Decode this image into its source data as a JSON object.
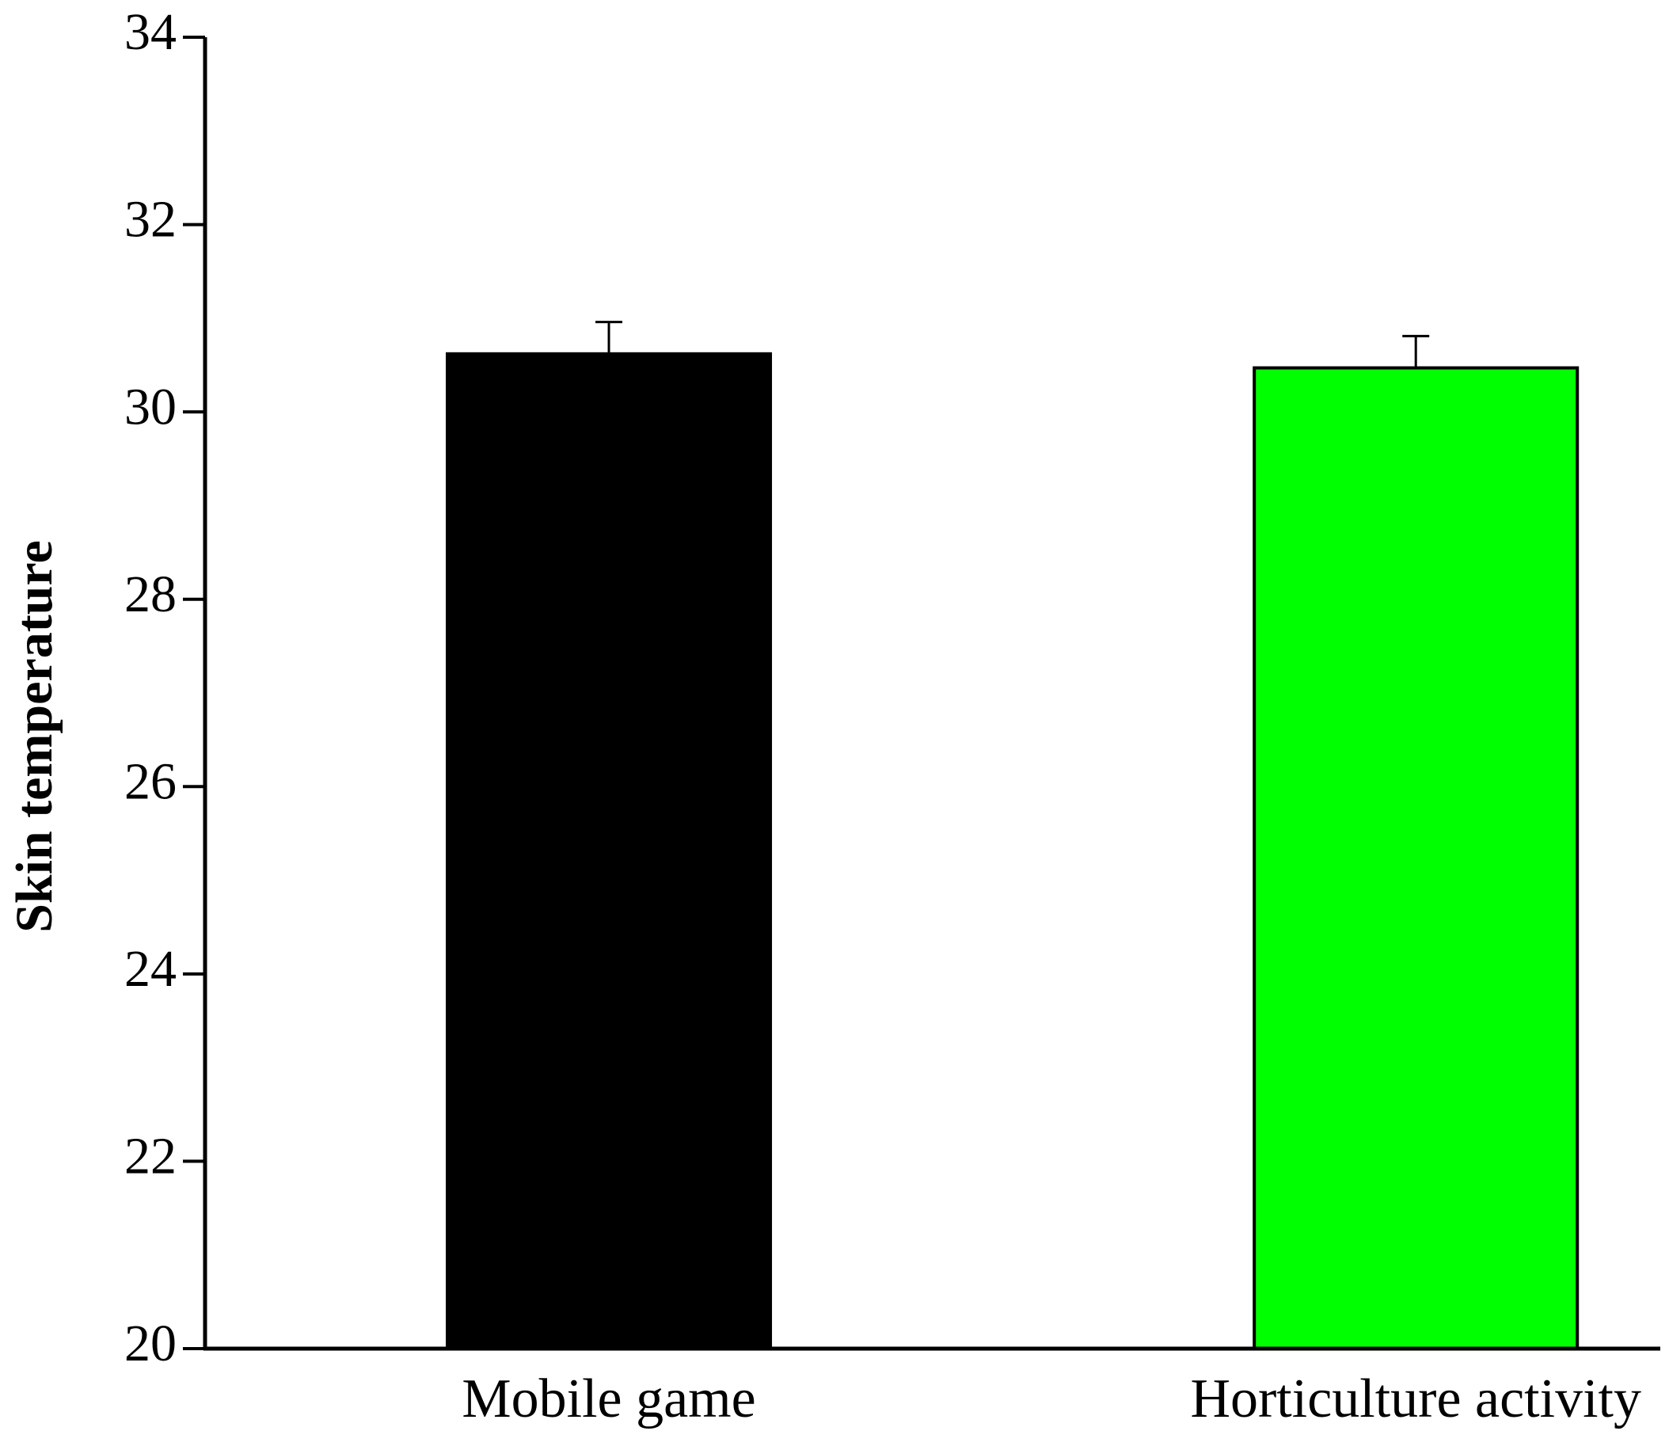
{
  "chart_data": {
    "type": "bar",
    "y_label": "Skin temperature",
    "categories": [
      "Mobile game",
      "Horticulture activity"
    ],
    "values": [
      30.62,
      30.47
    ],
    "errors": [
      0.34,
      0.34
    ],
    "colors": [
      "#000000",
      "#00ff00"
    ],
    "ylim": [
      20,
      34
    ],
    "yticks": [
      20,
      22,
      24,
      26,
      28,
      30,
      32,
      34
    ],
    "grid": false
  }
}
